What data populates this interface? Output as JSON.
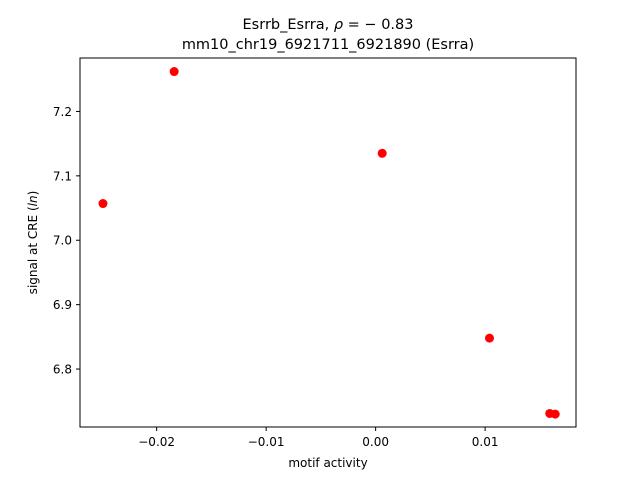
{
  "chart_data": {
    "type": "scatter",
    "title_line1_prefix": "Esrrb_Esrra, ",
    "title_line1_rho": "ρ",
    "title_line1_suffix": " = − 0.83",
    "title_line2": "mm10_chr19_6921711_6921890 (Esrra)",
    "xlabel": "motif activity",
    "ylabel_prefix": "signal at CRE (",
    "ylabel_italic": "ln",
    "ylabel_suffix": ")",
    "xlim": [
      -0.027,
      0.0183
    ],
    "ylim": [
      6.71,
      7.283
    ],
    "xticks": [
      {
        "value": -0.02,
        "label": "−0.02"
      },
      {
        "value": -0.01,
        "label": "−0.01"
      },
      {
        "value": 0.0,
        "label": "0.00"
      },
      {
        "value": 0.01,
        "label": "0.01"
      }
    ],
    "yticks": [
      {
        "value": 6.8,
        "label": "6.8"
      },
      {
        "value": 6.9,
        "label": "6.9"
      },
      {
        "value": 7.0,
        "label": "7.0"
      },
      {
        "value": 7.1,
        "label": "7.1"
      },
      {
        "value": 7.2,
        "label": "7.2"
      }
    ],
    "grid": false,
    "point_color": "#ff0000",
    "points": [
      {
        "x": -0.0249,
        "y": 7.057
      },
      {
        "x": -0.0184,
        "y": 7.262
      },
      {
        "x": 0.0006,
        "y": 7.135
      },
      {
        "x": 0.0104,
        "y": 6.848
      },
      {
        "x": 0.0159,
        "y": 6.731
      },
      {
        "x": 0.0164,
        "y": 6.73
      }
    ]
  }
}
